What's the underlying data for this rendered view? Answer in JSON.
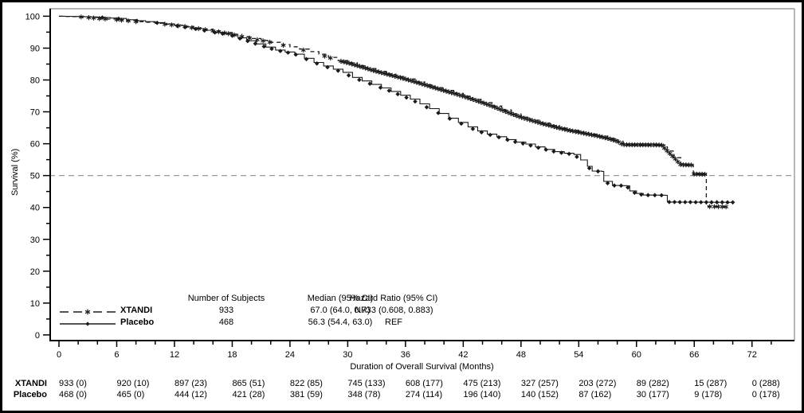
{
  "chart_data": {
    "type": "line",
    "subtype": "kaplan-meier-survival",
    "title": "",
    "xlabel": "Duration of Overall Survival (Months)",
    "ylabel": "Survival (%)",
    "xlim": [
      0,
      76
    ],
    "ylim": [
      0,
      100
    ],
    "x_ticks": [
      0,
      6,
      12,
      18,
      24,
      30,
      36,
      42,
      48,
      54,
      60,
      66,
      72
    ],
    "x_minor_step": 2,
    "y_ticks": [
      0,
      10,
      20,
      30,
      40,
      50,
      60,
      70,
      80,
      90,
      100
    ],
    "y_minor_step": 5,
    "reference_line_y": 50,
    "grid": false,
    "legend_position": "bottom-left-inside",
    "legend_headers": [
      "Number of Subjects",
      "Median (95% CI)",
      "Hazard Ratio (95% CI)"
    ],
    "series": [
      {
        "name": "XTANDI",
        "style": "dashed",
        "marker": "star",
        "n_subjects": "933",
        "median_95ci": "67.0 (64.0, NR)",
        "hazard_ratio_95ci": "0.733 (0.608, 0.883)",
        "points": [
          [
            0,
            100
          ],
          [
            2.2,
            99.8
          ],
          [
            3,
            99.6
          ],
          [
            4,
            99.3
          ],
          [
            5,
            99.1
          ],
          [
            6,
            98.9
          ],
          [
            7,
            98.6
          ],
          [
            8,
            98.3
          ],
          [
            9,
            98.1
          ],
          [
            10,
            97.8
          ],
          [
            11,
            97.5
          ],
          [
            12,
            97.2
          ],
          [
            13,
            96.8
          ],
          [
            14,
            96.3
          ],
          [
            15,
            95.9
          ],
          [
            16,
            95.4
          ],
          [
            17,
            94.9
          ],
          [
            18,
            94.3
          ],
          [
            19,
            93.6
          ],
          [
            20,
            93.0
          ],
          [
            21,
            92.4
          ],
          [
            22,
            91.8
          ],
          [
            23,
            91.1
          ],
          [
            24,
            90.4
          ],
          [
            25,
            89.7
          ],
          [
            26,
            88.9
          ],
          [
            27,
            88.1
          ],
          [
            28,
            87.1
          ],
          [
            29,
            86.1
          ],
          [
            30,
            85.4
          ],
          [
            31,
            84.5
          ],
          [
            32,
            83.6
          ],
          [
            33,
            82.7
          ],
          [
            34,
            81.9
          ],
          [
            35,
            81.1
          ],
          [
            36,
            80.3
          ],
          [
            37,
            79.4
          ],
          [
            38,
            78.5
          ],
          [
            39,
            77.6
          ],
          [
            40,
            76.7
          ],
          [
            41,
            75.8
          ],
          [
            42,
            74.9
          ],
          [
            43,
            73.9
          ],
          [
            44,
            72.9
          ],
          [
            45,
            71.8
          ],
          [
            46,
            70.6
          ],
          [
            47,
            69.4
          ],
          [
            48,
            68.3
          ],
          [
            49,
            67.4
          ],
          [
            50,
            66.5
          ],
          [
            51,
            65.7
          ],
          [
            52,
            64.9
          ],
          [
            53,
            64.2
          ],
          [
            54,
            63.6
          ],
          [
            55,
            63.0
          ],
          [
            56,
            62.4
          ],
          [
            57,
            61.7
          ],
          [
            58,
            60.8
          ],
          [
            58.6,
            59.7
          ],
          [
            62.6,
            59.6
          ],
          [
            63.2,
            57.7
          ],
          [
            63.9,
            55.6
          ],
          [
            64.6,
            53.4
          ],
          [
            65.8,
            53.3
          ],
          [
            65.9,
            50.5
          ],
          [
            67.2,
            50.4
          ],
          [
            67.25,
            40.3
          ],
          [
            69.4,
            40.2
          ]
        ],
        "censor_marks": {
          "explicit": [
            2.3,
            3.1,
            3.6,
            4.2,
            4.8,
            6.0,
            6.5,
            7.2,
            8.0,
            11.0,
            11.7,
            12.4,
            13.1,
            13.8,
            14.5,
            15.2,
            16.0,
            16.6,
            17.2,
            17.6,
            18.2,
            19.0,
            19.8,
            20.6,
            21.2,
            21.9,
            23.3,
            25.4,
            27.6,
            28.2,
            67.6,
            68.1,
            68.5,
            68.9,
            69.3
          ],
          "ranges": [
            {
              "from": 29.3,
              "to": 67.1,
              "step": 0.28
            }
          ]
        },
        "at_risk": [
          "933 (0)",
          "920 (10)",
          "897 (23)",
          "865 (51)",
          "822 (85)",
          "745 (133)",
          "608 (177)",
          "475 (213)",
          "327 (257)",
          "203 (272)",
          "89 (282)",
          "15 (287)",
          "0 (288)"
        ]
      },
      {
        "name": "Placebo",
        "style": "solid",
        "marker": "diamond",
        "n_subjects": "468",
        "median_95ci": "56.3 (54.4, 63.0)",
        "hazard_ratio_95ci": "REF",
        "points": [
          [
            0,
            100
          ],
          [
            2,
            99.9
          ],
          [
            4,
            99.7
          ],
          [
            6,
            99.3
          ],
          [
            7,
            98.9
          ],
          [
            8,
            98.6
          ],
          [
            9,
            98.3
          ],
          [
            10,
            98.0
          ],
          [
            11,
            97.6
          ],
          [
            12,
            97.1
          ],
          [
            13,
            96.6
          ],
          [
            14,
            96.1
          ],
          [
            15,
            95.6
          ],
          [
            16,
            95.0
          ],
          [
            17,
            94.5
          ],
          [
            18,
            93.9
          ],
          [
            18.6,
            93.2
          ],
          [
            19.5,
            92.3
          ],
          [
            20.5,
            91.3
          ],
          [
            21.5,
            90.3
          ],
          [
            22.5,
            89.4
          ],
          [
            23.5,
            88.8
          ],
          [
            24.5,
            88.1
          ],
          [
            25.5,
            86.8
          ],
          [
            26.5,
            85.5
          ],
          [
            27.5,
            84.4
          ],
          [
            28.5,
            83.4
          ],
          [
            29.5,
            82.4
          ],
          [
            30.5,
            80.8
          ],
          [
            31.5,
            79.7
          ],
          [
            32.5,
            78.6
          ],
          [
            33.5,
            77.5
          ],
          [
            34.5,
            76.4
          ],
          [
            35.5,
            75.2
          ],
          [
            36.5,
            74.0
          ],
          [
            37.5,
            72.5
          ],
          [
            38.5,
            71.0
          ],
          [
            39.5,
            69.5
          ],
          [
            40.5,
            68.0
          ],
          [
            41.5,
            66.7
          ],
          [
            42.5,
            65.3
          ],
          [
            43.5,
            64.0
          ],
          [
            44.5,
            63.0
          ],
          [
            45.5,
            62.2
          ],
          [
            46.5,
            61.3
          ],
          [
            47.5,
            60.5
          ],
          [
            48.5,
            59.9
          ],
          [
            49.5,
            59.0
          ],
          [
            50.5,
            58.2
          ],
          [
            51.5,
            57.5
          ],
          [
            52.5,
            57.0
          ],
          [
            53.5,
            56.6
          ],
          [
            54.2,
            54.9
          ],
          [
            54.9,
            52.9
          ],
          [
            55.4,
            51.4
          ],
          [
            56.4,
            51.3
          ],
          [
            56.6,
            48.2
          ],
          [
            57.5,
            46.9
          ],
          [
            59.0,
            46.8
          ],
          [
            59.3,
            45.2
          ],
          [
            60.0,
            44.4
          ],
          [
            60.7,
            43.9
          ],
          [
            63.1,
            43.8
          ],
          [
            63.2,
            41.7
          ],
          [
            70.1,
            41.6
          ]
        ],
        "censor_marks": {
          "explicit": [
            4.5,
            6.2,
            8.1,
            10.2,
            12.3,
            13.1,
            14.2,
            15.1,
            16.2,
            17.0,
            18.0,
            18.8,
            19.6,
            20.4,
            21.3,
            22.1,
            23.0,
            23.8,
            24.6,
            25.7,
            26.8,
            27.9,
            29.0,
            30.1,
            31.2,
            32.3,
            33.4,
            34.3,
            35.2,
            36.1,
            37.0,
            38.2,
            39.4,
            40.6,
            41.8,
            43.0,
            43.9,
            44.8,
            45.7,
            46.6,
            47.4,
            48.2,
            49.0,
            49.8,
            50.6,
            51.4,
            52.2,
            53.0,
            53.8,
            55.1,
            56.0
          ],
          "ranges": [
            {
              "from": 57.0,
              "to": 63.0,
              "step": 0.7
            },
            {
              "from": 63.4,
              "to": 70.0,
              "step": 0.55
            }
          ]
        },
        "at_risk": [
          "468 (0)",
          "465 (0)",
          "444 (12)",
          "421 (28)",
          "381 (59)",
          "348 (78)",
          "274 (114)",
          "196 (140)",
          "140 (152)",
          "87 (162)",
          "30 (177)",
          "9 (178)",
          "0 (178)"
        ]
      }
    ],
    "at_risk_row_labels": [
      "XTANDI",
      "Placebo"
    ]
  },
  "colors": {
    "line": "#1a1a1a",
    "axis": "#000000",
    "frame": "#888888",
    "reference_line": "#9a9a9a",
    "text": "#000000",
    "background": "#ffffff"
  }
}
